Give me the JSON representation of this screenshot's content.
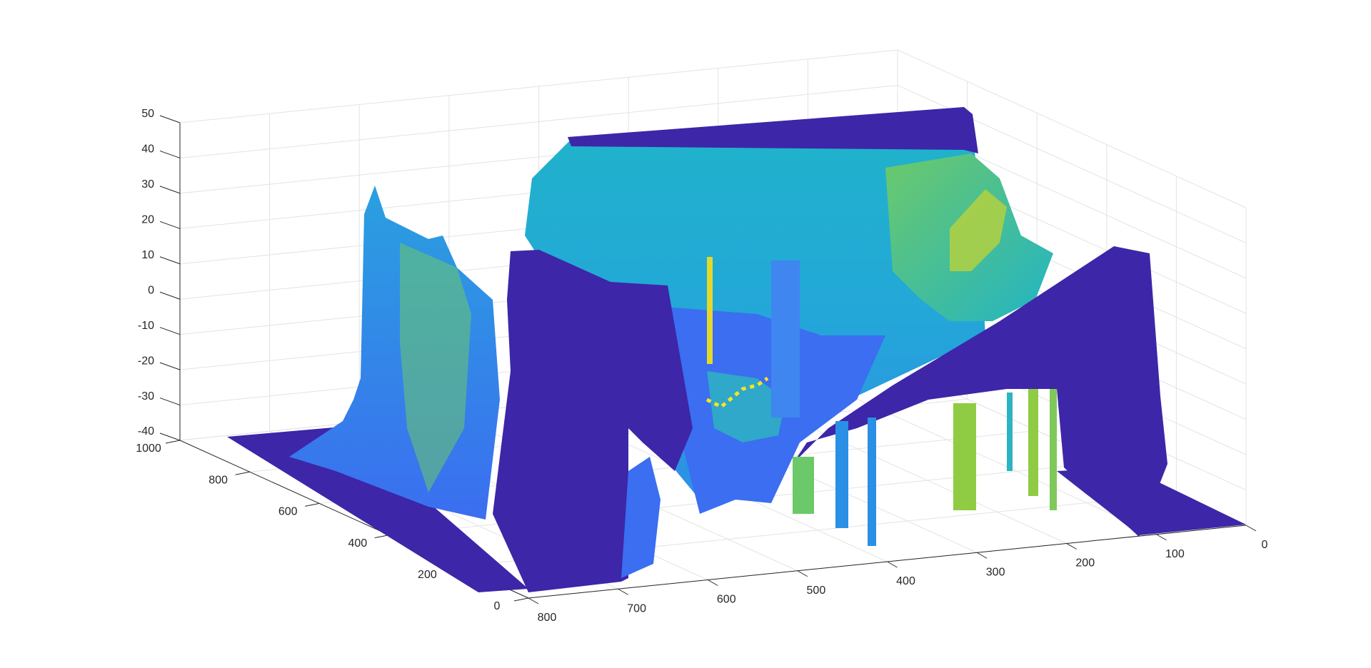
{
  "chart_data": {
    "type": "surface",
    "title": "",
    "xlabel": "",
    "ylabel": "",
    "zlabel": "",
    "grid": true,
    "colormap": "parula",
    "colors": {
      "floor": "#3d26a8",
      "low": "#3c65e8",
      "mid": "#19b6c4",
      "high": "#a6d13a",
      "peak": "#f8e325"
    },
    "x_axis": {
      "range": [
        0,
        800
      ],
      "ticks": [
        "0",
        "100",
        "200",
        "300",
        "400",
        "500",
        "600",
        "700",
        "800"
      ]
    },
    "y_axis": {
      "range": [
        0,
        1000
      ],
      "ticks": [
        "0",
        "200",
        "400",
        "600",
        "800",
        "1000"
      ]
    },
    "z_axis": {
      "range": [
        -40,
        50
      ],
      "ticks": [
        "-40",
        "-30",
        "-20",
        "-10",
        "0",
        "10",
        "20",
        "30",
        "40",
        "50"
      ]
    },
    "surface_notes": "terrain-like height field; flat floor at z=-40 shown in dark blue, elevated regions up to z≈50"
  }
}
